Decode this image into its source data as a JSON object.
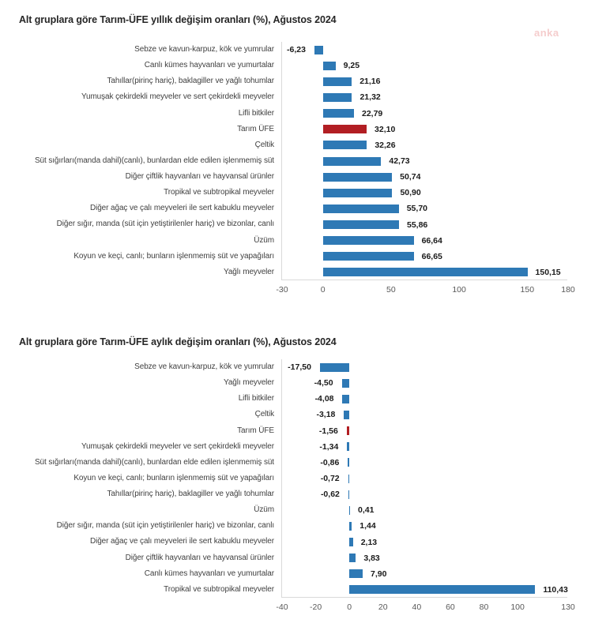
{
  "watermark": "anka",
  "chart_data": [
    {
      "type": "bar",
      "orientation": "horizontal",
      "title": "Alt gruplara göre Tarım-ÜFE yıllık değişim oranları (%), Ağustos 2024",
      "xlabel": "",
      "ylabel": "",
      "xlim": [
        -30,
        180
      ],
      "ticks": [
        -30,
        0,
        50,
        100,
        150,
        180
      ],
      "grid": false,
      "legend": "none",
      "bar_color": "#2e79b5",
      "highlight_category": "Tarım ÜFE",
      "highlight_color": "#b21e23",
      "value_label_decimals": 2,
      "value_label_decimal_separator": ",",
      "categories": [
        "Sebze ve kavun-karpuz, kök ve yumrular",
        "Canlı kümes hayvanları ve yumurtalar",
        "Tahıllar(pirinç hariç), baklagiller ve yağlı tohumlar",
        "Yumuşak çekirdekli meyveler ve sert çekirdekli meyveler",
        "Lifli bitkiler",
        "Tarım ÜFE",
        "Çeltik",
        "Süt sığırları(manda dahil)(canlı), bunlardan elde edilen işlenmemiş süt",
        "Diğer çiftlik hayvanları ve hayvansal ürünler",
        "Tropikal ve subtropikal meyveler",
        "Diğer ağaç ve çalı meyveleri ile sert kabuklu meyveler",
        "Diğer sığır, manda (süt için yetiştirilenler hariç) ve bizonlar, canlı",
        "Üzüm",
        "Koyun ve keçi, canlı; bunların işlenmemiş süt ve yapağıları",
        "Yağlı meyveler"
      ],
      "values": [
        -6.23,
        9.25,
        21.16,
        21.32,
        22.79,
        32.1,
        32.26,
        42.73,
        50.74,
        50.9,
        55.7,
        55.86,
        66.64,
        66.65,
        150.15
      ]
    },
    {
      "type": "bar",
      "orientation": "horizontal",
      "title": "Alt gruplara göre Tarım-ÜFE aylık değişim oranları (%), Ağustos 2024",
      "xlabel": "",
      "ylabel": "",
      "xlim": [
        -40,
        130
      ],
      "ticks": [
        -40,
        -20,
        0,
        20,
        40,
        60,
        80,
        100,
        130
      ],
      "grid": false,
      "legend": "none",
      "bar_color": "#2e79b5",
      "highlight_category": "Tarım ÜFE",
      "highlight_color": "#b21e23",
      "value_label_decimals": 2,
      "value_label_decimal_separator": ",",
      "categories": [
        "Sebze ve kavun-karpuz, kök ve yumrular",
        "Yağlı meyveler",
        "Lifli bitkiler",
        "Çeltik",
        "Tarım ÜFE",
        "Yumuşak çekirdekli meyveler ve sert çekirdekli meyveler",
        "Süt sığırları(manda dahil)(canlı), bunlardan elde edilen işlenmemiş süt",
        "Koyun ve keçi, canlı; bunların işlenmemiş süt ve yapağıları",
        "Tahıllar(pirinç hariç), baklagiller ve yağlı tohumlar",
        "Üzüm",
        "Diğer sığır, manda (süt için yetiştirilenler hariç) ve bizonlar, canlı",
        "Diğer ağaç ve çalı meyveleri ile sert kabuklu meyveler",
        "Diğer çiftlik hayvanları ve hayvansal ürünler",
        "Canlı kümes hayvanları ve yumurtalar",
        "Tropikal ve subtropikal meyveler"
      ],
      "values": [
        -17.5,
        -4.5,
        -4.08,
        -3.18,
        -1.56,
        -1.34,
        -0.86,
        -0.72,
        -0.62,
        0.41,
        1.44,
        2.13,
        3.83,
        7.9,
        110.43
      ]
    }
  ]
}
